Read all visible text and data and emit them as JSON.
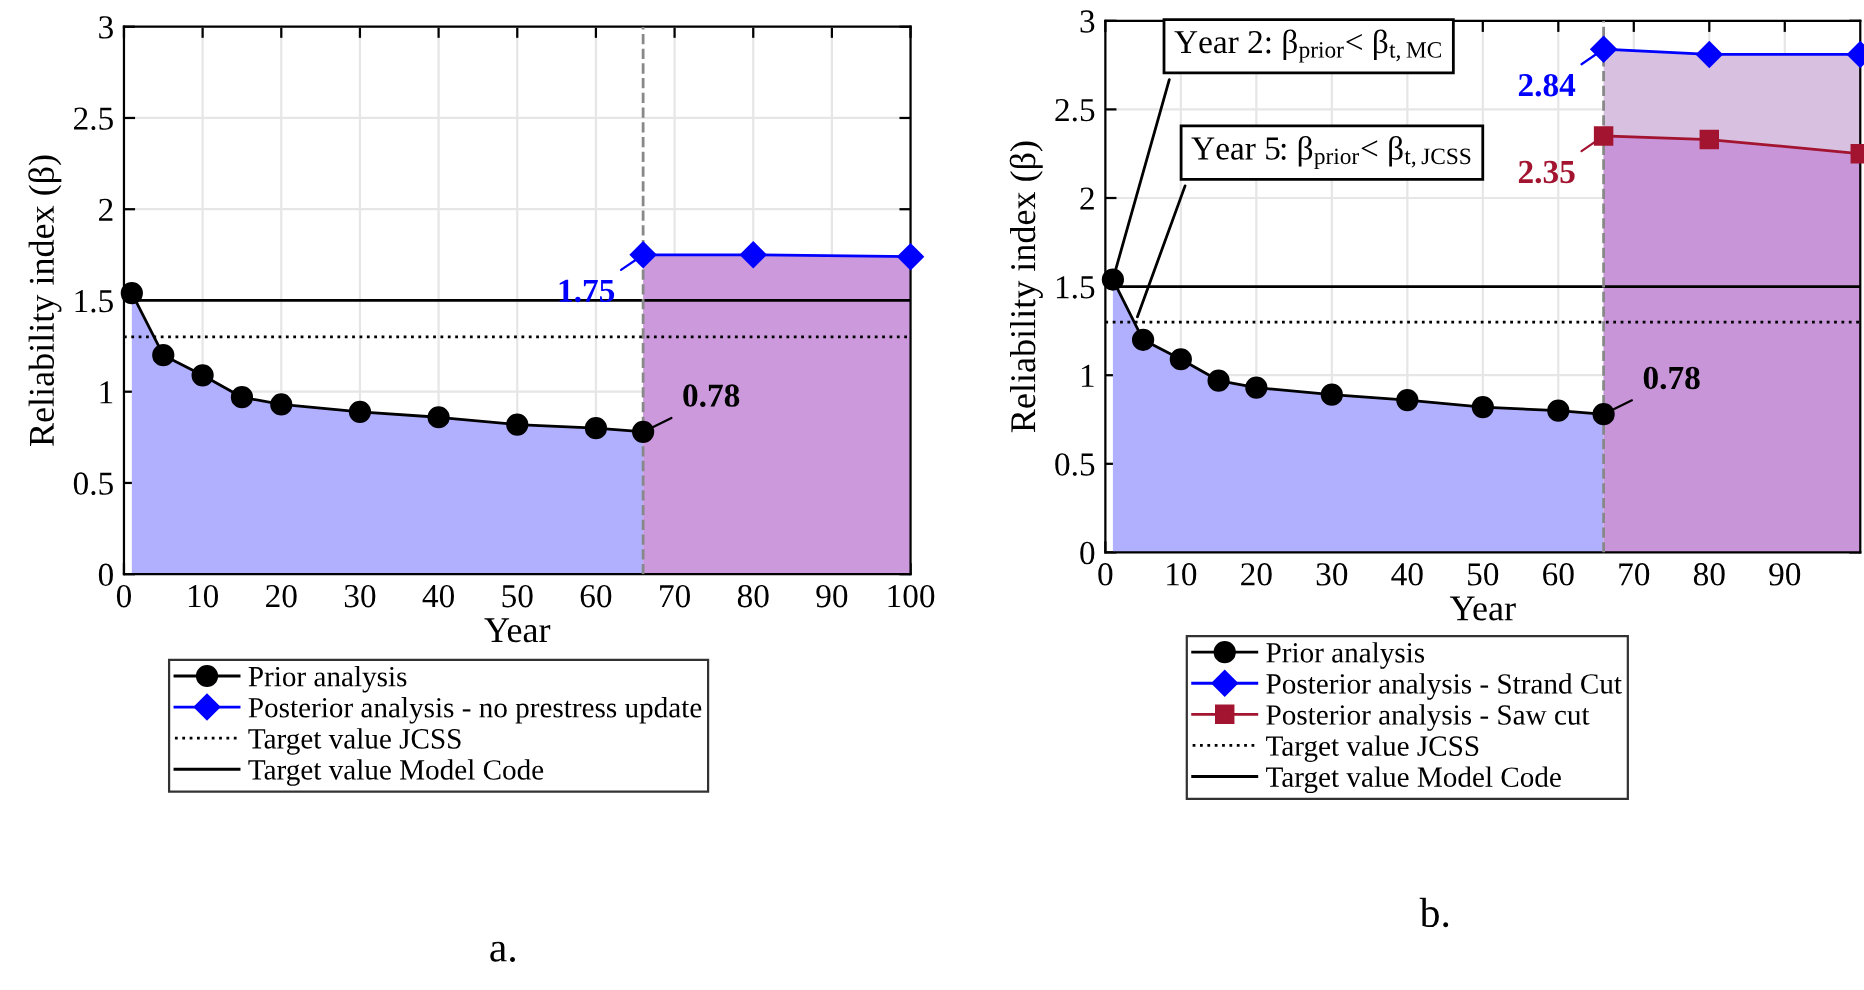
{
  "chart_data": [
    {
      "type": "area",
      "xlabel": "Year",
      "ylabel": "Reliability index (β)",
      "xlim": [
        0,
        100
      ],
      "ylim": [
        0,
        3
      ],
      "xticks": [
        0,
        10,
        20,
        30,
        40,
        50,
        60,
        70,
        80,
        90,
        100
      ],
      "yticks": [
        0,
        0.5,
        1,
        1.5,
        2,
        2.5,
        3
      ],
      "grid": true,
      "legend": "bottom",
      "series": [
        {
          "name": "Prior analysis",
          "color": "#000000",
          "marker": "circle",
          "x": [
            1,
            5,
            10,
            15,
            20,
            30,
            40,
            50,
            60,
            66
          ],
          "values": [
            1.54,
            1.2,
            1.09,
            0.97,
            0.93,
            0.89,
            0.86,
            0.82,
            0.8,
            0.78
          ],
          "value_labels": [
            null,
            null,
            null,
            null,
            null,
            null,
            null,
            null,
            null,
            "0.78"
          ]
        },
        {
          "name": "Posterior analysis - no prestress update",
          "color": "#0000ff",
          "marker": "diamond",
          "x": [
            66,
            80,
            100
          ],
          "values": [
            1.75,
            1.75,
            1.74
          ],
          "value_labels": [
            "1.75",
            null,
            null
          ]
        }
      ],
      "ref_lines": [
        {
          "axis": "y",
          "value": 1.3,
          "label": "Target value JCSS",
          "color": "#000000",
          "line_style": "dotted"
        },
        {
          "axis": "y",
          "value": 1.5,
          "label": "Target value Model Code",
          "color": "#000000",
          "line_style": "solid"
        },
        {
          "axis": "x",
          "value": 66,
          "color": "#888888",
          "line_style": "dashed"
        }
      ],
      "annotations": [
        "a."
      ]
    },
    {
      "type": "area",
      "xlabel": "Year",
      "ylabel": "Reliability index (β)",
      "xlim": [
        0,
        100
      ],
      "ylim": [
        0,
        3
      ],
      "xticks": [
        0,
        10,
        20,
        30,
        40,
        50,
        60,
        70,
        80,
        90
      ],
      "yticks": [
        0,
        0.5,
        1,
        1.5,
        2,
        2.5,
        3
      ],
      "grid": true,
      "legend": "bottom",
      "series": [
        {
          "name": "Prior analysis",
          "color": "#000000",
          "marker": "circle",
          "x": [
            1,
            5,
            10,
            15,
            20,
            30,
            40,
            50,
            60,
            66
          ],
          "values": [
            1.54,
            1.2,
            1.09,
            0.97,
            0.93,
            0.89,
            0.86,
            0.82,
            0.8,
            0.78
          ],
          "value_labels": [
            null,
            null,
            null,
            null,
            null,
            null,
            null,
            null,
            null,
            "0.78"
          ]
        },
        {
          "name": "Posterior analysis - Strand Cut",
          "color": "#0000ff",
          "marker": "diamond",
          "x": [
            66,
            80,
            100
          ],
          "values": [
            2.84,
            2.81,
            2.81
          ],
          "value_labels": [
            "2.84",
            null,
            null
          ]
        },
        {
          "name": "Posterior analysis - Saw cut",
          "color": "#a2142f",
          "marker": "square",
          "x": [
            66,
            80,
            100
          ],
          "values": [
            2.35,
            2.33,
            2.25
          ],
          "value_labels": [
            "2.35",
            null,
            null
          ]
        }
      ],
      "ref_lines": [
        {
          "axis": "y",
          "value": 1.3,
          "label": "Target value JCSS",
          "color": "#000000",
          "line_style": "dotted"
        },
        {
          "axis": "y",
          "value": 1.5,
          "label": "Target value Model Code",
          "color": "#000000",
          "line_style": "solid"
        },
        {
          "axis": "x",
          "value": 66,
          "color": "#888888",
          "line_style": "dashed"
        }
      ],
      "annotations": [
        {
          "text": "Year 2: β$_{prior}$< β$_{t,MC}$",
          "x": 1,
          "y": 1.54
        },
        {
          "text": "Year 5: β$_{prior}$< β$_{t,JCSS}$",
          "x": 4,
          "y": 1.3
        },
        "b."
      ]
    }
  ]
}
